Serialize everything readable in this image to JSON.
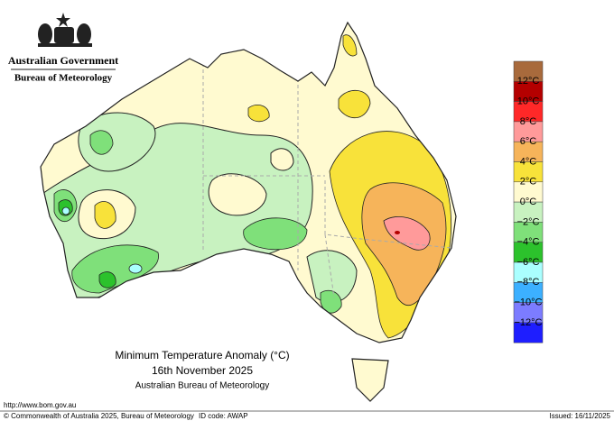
{
  "header": {
    "government": "Australian Government",
    "bureau": "Bureau of Meteorology"
  },
  "map": {
    "title": "Minimum Temperature Anomaly (°C)",
    "date": "16th November 2025",
    "source": "Australian Bureau of Meteorology"
  },
  "legend": {
    "labels": [
      "12°C",
      "10°C",
      "8°C",
      "6°C",
      "4°C",
      "2°C",
      "0°C",
      "−2°C",
      "−4°C",
      "−6°C",
      "−8°C",
      "−10°C",
      "−12°C"
    ],
    "colors": [
      "#a86a3c",
      "#b40000",
      "#ff2828",
      "#ff9a9a",
      "#f6b45a",
      "#f8e23a",
      "#fffad0",
      "#c8f2c0",
      "#7fe07a",
      "#2cc22c",
      "#aaffff",
      "#3cb0ff",
      "#7c7cff",
      "#1e1eff"
    ]
  },
  "footer": {
    "url": "http://www.bom.gov.au",
    "copyright": "© Commonwealth of Australia 2025, Bureau of Meteorology",
    "id_code": "ID code: AWAP",
    "issued": "Issued: 16/11/2025"
  }
}
